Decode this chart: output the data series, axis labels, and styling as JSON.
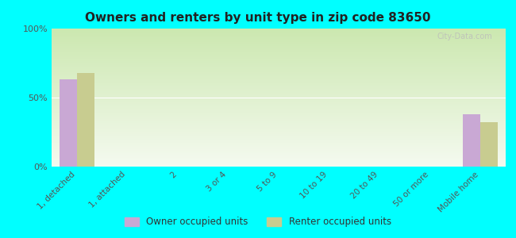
{
  "title": "Owners and renters by unit type in zip code 83650",
  "categories": [
    "1, detached",
    "1, attached",
    "2",
    "3 or 4",
    "5 to 9",
    "10 to 19",
    "20 to 49",
    "50 or more",
    "Mobile home"
  ],
  "owner_values": [
    63,
    0,
    0,
    0,
    0,
    0,
    0,
    0,
    38
  ],
  "renter_values": [
    68,
    0,
    0,
    0,
    0,
    0,
    0,
    0,
    32
  ],
  "owner_color": "#c9a8d4",
  "renter_color": "#c8cc90",
  "background_color": "#00ffff",
  "ylabel_ticks": [
    "0%",
    "50%",
    "100%"
  ],
  "ytick_values": [
    0,
    50,
    100
  ],
  "ylim": [
    0,
    100
  ],
  "bar_width": 0.35,
  "legend_owner": "Owner occupied units",
  "legend_renter": "Renter occupied units",
  "watermark": "City-Data.com",
  "grad_top": "#cce8b0",
  "grad_bottom": "#f5faf0"
}
